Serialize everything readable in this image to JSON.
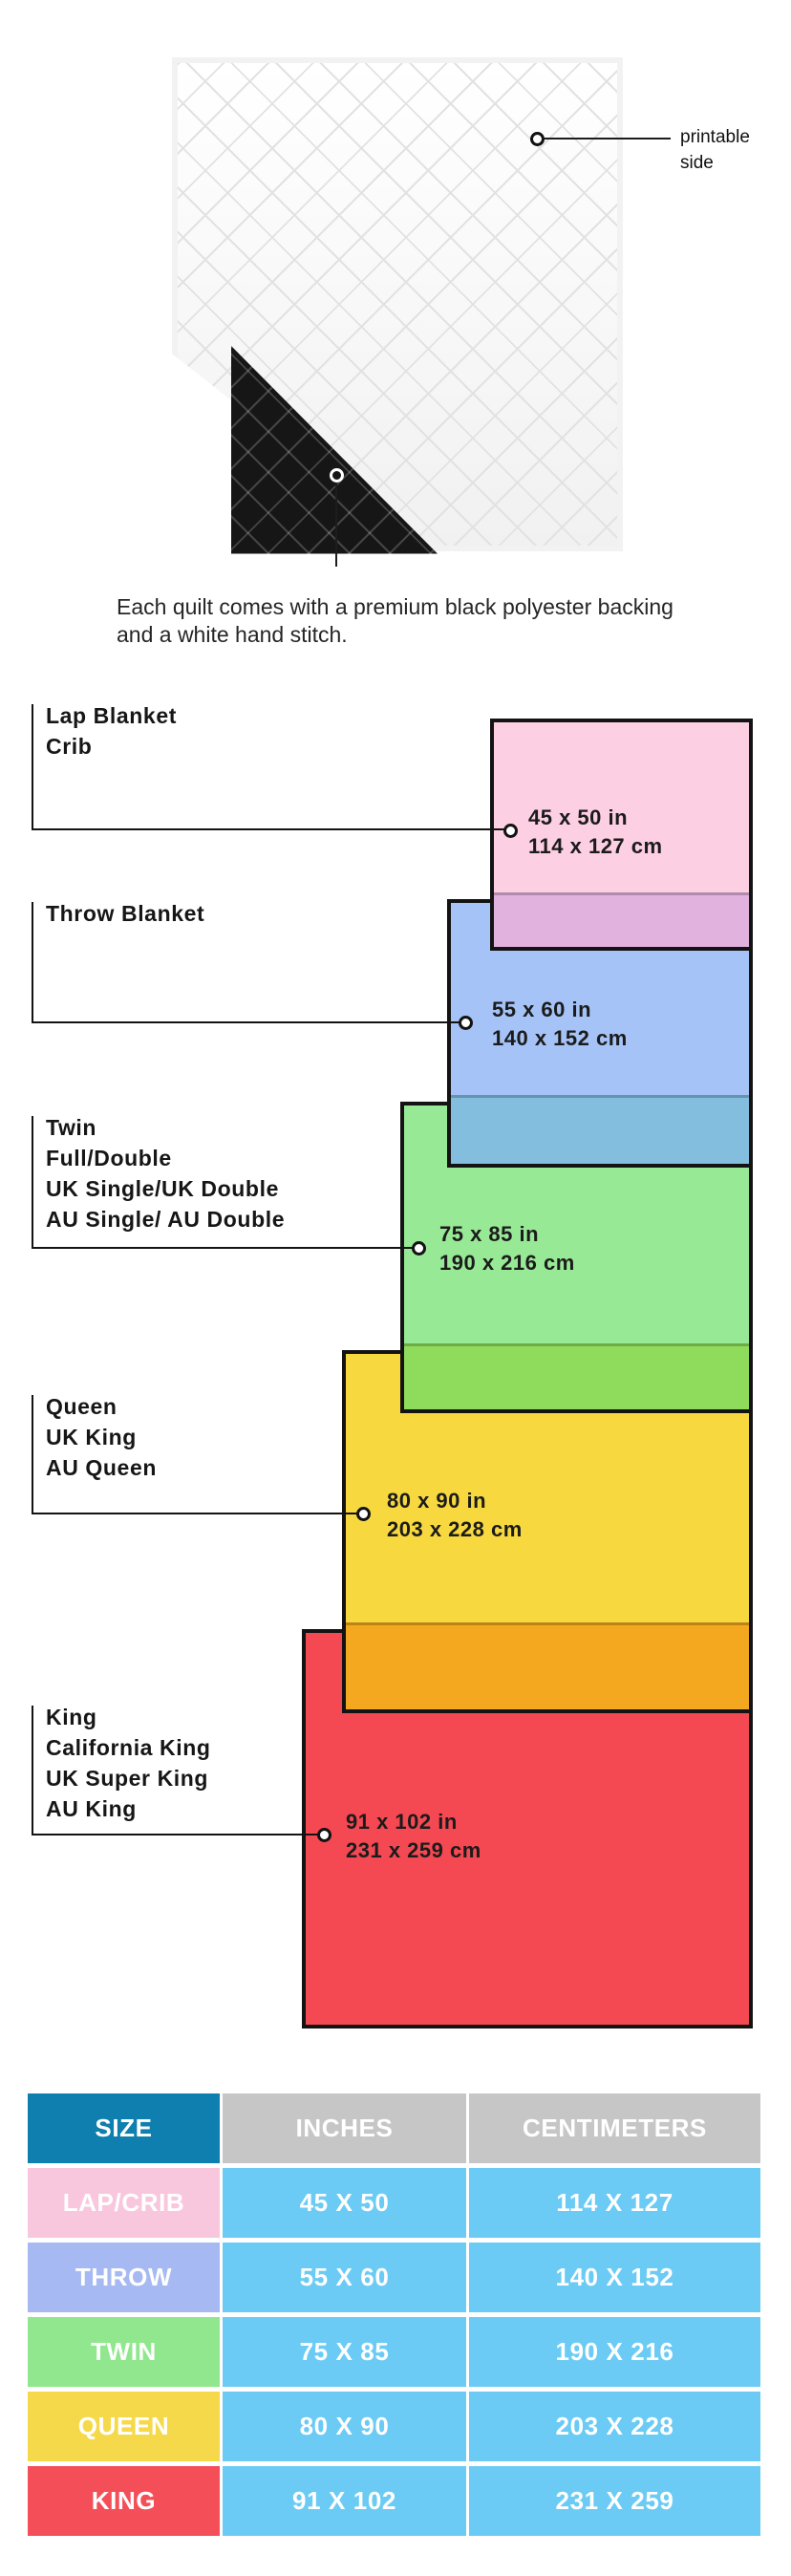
{
  "quilt": {
    "printable_label": "printable side",
    "description": "Each quilt comes with a premium black polyester backing and a white hand stitch."
  },
  "diagram": {
    "blankets": [
      {
        "id": "lap",
        "names": [
          "Lap Blanket",
          "Crib"
        ],
        "inches": "45 x 50 in",
        "cm": "114 x 127 cm",
        "fill": "#fccfe3",
        "overlap_fill": "#e2b2df"
      },
      {
        "id": "throw",
        "names": [
          "Throw Blanket"
        ],
        "inches": "55 x 60 in",
        "cm": "140 x 152 cm",
        "fill": "#a5c3f7",
        "overlap_fill": "#83bedf"
      },
      {
        "id": "twin",
        "names": [
          "Twin",
          "Full/Double",
          "UK Single/UK Double",
          "AU Single/ AU Double"
        ],
        "inches": "75 x 85 in",
        "cm": "190 x 216 cm",
        "fill": "#98e996",
        "overlap_fill": "#8fdc5c"
      },
      {
        "id": "queen",
        "names": [
          "Queen",
          "UK King",
          "AU Queen"
        ],
        "inches": "80 x 90 in",
        "cm": "203 x 228 cm",
        "fill": "#f7d93f",
        "overlap_fill": "#f3a820"
      },
      {
        "id": "king",
        "names": [
          "King",
          "California King",
          "UK Super King",
          "AU King"
        ],
        "inches": "91 x 102 in",
        "cm": "231 x 259 cm",
        "fill": "#f44853",
        "overlap_fill": null
      }
    ]
  },
  "table": {
    "headers": [
      "SIZE",
      "INCHES",
      "CENTIMETERS"
    ],
    "header_colors": {
      "size": "#0e7fae",
      "others": "#c6c6c6"
    },
    "data_cell_color": "#6bcbf4",
    "rows": [
      {
        "label": "LAP/CRIB",
        "inches": "45 X 50",
        "cm": "114 X 127",
        "color": "#f9c7dd"
      },
      {
        "label": "THROW",
        "inches": "55 X 60",
        "cm": "140 X 152",
        "color": "#a7b9f3"
      },
      {
        "label": "TWIN",
        "inches": "75 X 85",
        "cm": "190 X 216",
        "color": "#90e78e"
      },
      {
        "label": "QUEEN",
        "inches": "80 X 90",
        "cm": "203 X 228",
        "color": "#f6d94a"
      },
      {
        "label": "KING",
        "inches": "91 X 102",
        "cm": "231 X 259",
        "color": "#f44f59"
      }
    ]
  }
}
